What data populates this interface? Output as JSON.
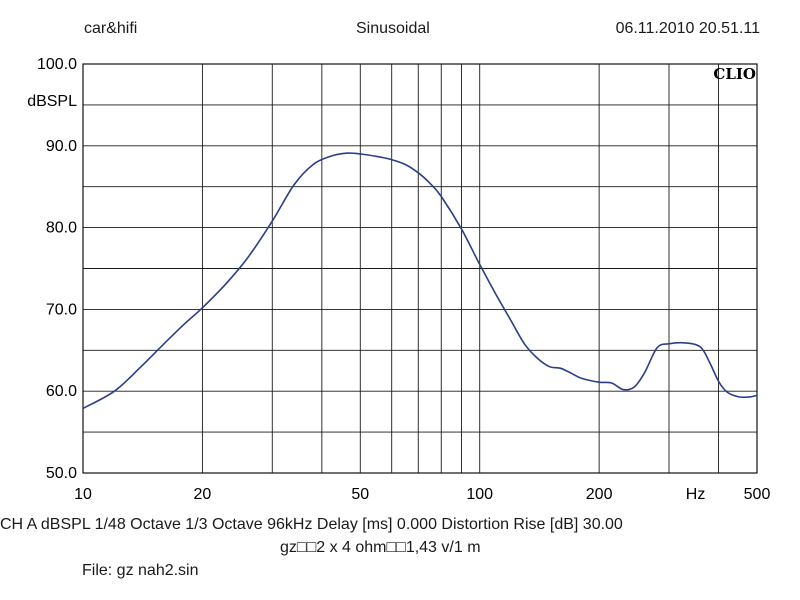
{
  "header": {
    "left": "car&hifi",
    "center": "Sinusoidal",
    "right": "06.11.2010 20.51.11"
  },
  "brand": "CLIO",
  "info": {
    "line1": "CH A   dBSPL    1/48 Octave    1/3 Octave    96kHz    Delay [ms] 0.000    Distortion Rise [dB] 30.00",
    "line2": "gz□□2 x 4 ohm□□1,43 v/1 m",
    "line3": "File: gz nah2.sin"
  },
  "chart_data": {
    "type": "line",
    "xscale": "log",
    "xlim": [
      10,
      500
    ],
    "ylim": [
      50,
      100
    ],
    "ylabel": "dBSPL",
    "grid": true,
    "line_color": "#2b3f86",
    "yticks": [
      {
        "value": 100,
        "label": "100.0"
      },
      {
        "value": 90,
        "label": "90.0"
      },
      {
        "value": 80,
        "label": "80.0"
      },
      {
        "value": 70,
        "label": "70.0"
      },
      {
        "value": 60,
        "label": "60.0"
      },
      {
        "value": 50,
        "label": "50.0"
      }
    ],
    "xticks": [
      {
        "value": 10,
        "label": "10"
      },
      {
        "value": 20,
        "label": "20"
      },
      {
        "value": 50,
        "label": "50"
      },
      {
        "value": 100,
        "label": "100"
      },
      {
        "value": 200,
        "label": "200"
      },
      {
        "value": 350,
        "label": "Hz"
      },
      {
        "value": 500,
        "label": "500"
      }
    ],
    "series": [
      {
        "x": [
          10,
          12,
          14,
          16,
          18,
          20,
          23,
          26,
          30,
          34,
          38,
          42,
          46,
          50,
          55,
          60,
          65,
          70,
          75,
          80,
          90,
          100,
          110,
          120,
          130,
          140,
          150,
          160,
          170,
          180,
          200,
          215,
          230,
          245,
          260,
          280,
          300,
          330,
          360,
          380,
          400,
          420,
          450,
          480,
          500
        ],
        "y": [
          57.9,
          60.0,
          63.0,
          65.8,
          68.2,
          70.2,
          73.2,
          76.3,
          80.8,
          85.2,
          87.7,
          88.7,
          89.1,
          89.0,
          88.7,
          88.3,
          87.7,
          86.7,
          85.4,
          83.8,
          79.8,
          75.5,
          71.8,
          68.6,
          65.7,
          64.0,
          63.0,
          62.8,
          62.2,
          61.6,
          61.1,
          61.0,
          60.2,
          60.5,
          62.2,
          65.3,
          65.8,
          65.9,
          65.4,
          63.5,
          61.2,
          59.9,
          59.3,
          59.3,
          59.5
        ]
      }
    ]
  }
}
